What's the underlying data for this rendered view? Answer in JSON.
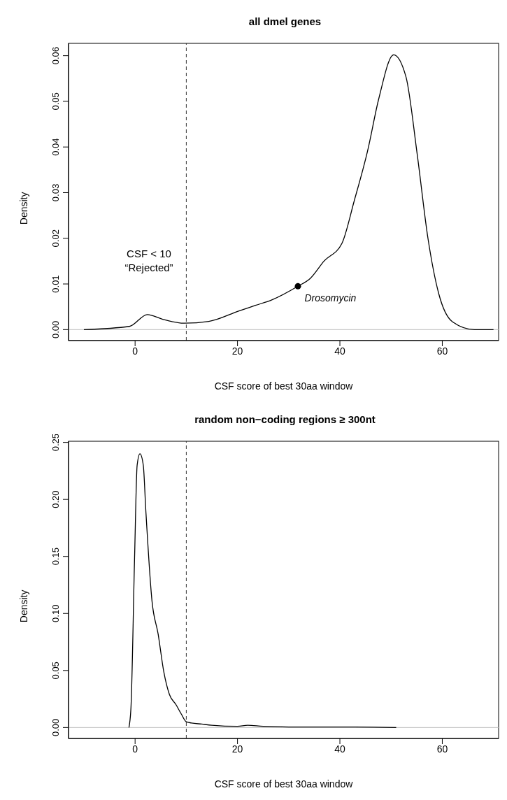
{
  "chart_data": [
    {
      "type": "line",
      "title": "all dmel genes",
      "xlabel": "CSF score of best 30aa window",
      "ylabel": "Density",
      "xlim": [
        -13,
        71
      ],
      "xticks": [
        0,
        20,
        40,
        60
      ],
      "ylim": [
        -0.0024,
        0.0627
      ],
      "yticks": [
        {
          "value": 0,
          "label": "0.00"
        },
        {
          "value": 0.01,
          "label": "0.01"
        },
        {
          "value": 0.02,
          "label": "0.02"
        },
        {
          "value": 0.03,
          "label": "0.03"
        },
        {
          "value": 0.04,
          "label": "0.04"
        },
        {
          "value": 0.05,
          "label": "0.05"
        },
        {
          "value": 0.06,
          "label": "0.06"
        }
      ],
      "grid": false,
      "series": [
        {
          "color": "#000000",
          "x": [
            -10,
            -1.1,
            2.4,
            5.3,
            9.6,
            14.4,
            20.3,
            23.5,
            26.7,
            31.8,
            34.2,
            36.9,
            40.4,
            42.8,
            45.4,
            47.6,
            50.5,
            52.9,
            55.1,
            57.2,
            59.3,
            62,
            66.3,
            70
          ],
          "values": [
            0,
            0.0007,
            0.0033,
            0.0023,
            0.0014,
            0.0018,
            0.0041,
            0.0053,
            0.0065,
            0.0095,
            0.0112,
            0.015,
            0.0189,
            0.0282,
            0.0391,
            0.0506,
            0.0602,
            0.0554,
            0.0384,
            0.02,
            0.0079,
            0.0017,
            0,
            0
          ]
        },
        {
          "type": "scatter",
          "name": "Drosomycin",
          "color": "#000000",
          "x": [
            31.8
          ],
          "values": [
            0.0095
          ]
        }
      ],
      "ref_lines": [
        {
          "axis": "x",
          "value": 10,
          "color": "#333333",
          "line_style": "dashed"
        },
        {
          "axis": "y",
          "value": 0,
          "color": "#bebebe",
          "line_style": "solid"
        }
      ],
      "annotations": [
        "CSF < 10",
        "“Rejected”"
      ]
    },
    {
      "type": "line",
      "title": "random non−coding regions ≥ 300nt",
      "xlabel": "CSF score of best 30aa window",
      "ylabel": "Density",
      "xlim": [
        -13,
        71
      ],
      "xticks": [
        0,
        20,
        40,
        60
      ],
      "ylim": [
        -0.0096,
        0.251
      ],
      "yticks": [
        {
          "value": 0,
          "label": "0.00"
        },
        {
          "value": 0.05,
          "label": "0.05"
        },
        {
          "value": 0.1,
          "label": "0.10"
        },
        {
          "value": 0.15,
          "label": "0.15"
        },
        {
          "value": 0.2,
          "label": "0.20"
        },
        {
          "value": 0.25,
          "label": "0.25"
        }
      ],
      "grid": false,
      "series": [
        {
          "color": "#000000",
          "x": [
            -1.2,
            -0.8,
            -0.1,
            0.4,
            0.95,
            1.6,
            2.1,
            3.3,
            4.5,
            5.6,
            6.7,
            8,
            9,
            10,
            11,
            13,
            15,
            20,
            22,
            25,
            30,
            40,
            51
          ],
          "values": [
            0,
            0.018,
            0.149,
            0.23,
            0.24,
            0.23,
            0.19,
            0.111,
            0.082,
            0.049,
            0.029,
            0.02,
            0.012,
            0.005,
            0.004,
            0.003,
            0.002,
            0.001,
            0.002,
            0.001,
            0.0005,
            0.0005,
            0
          ]
        }
      ],
      "ref_lines": [
        {
          "axis": "x",
          "value": 10,
          "color": "#333333",
          "line_style": "dashed"
        },
        {
          "axis": "y",
          "value": 0,
          "color": "#bebebe",
          "line_style": "solid"
        }
      ]
    }
  ]
}
